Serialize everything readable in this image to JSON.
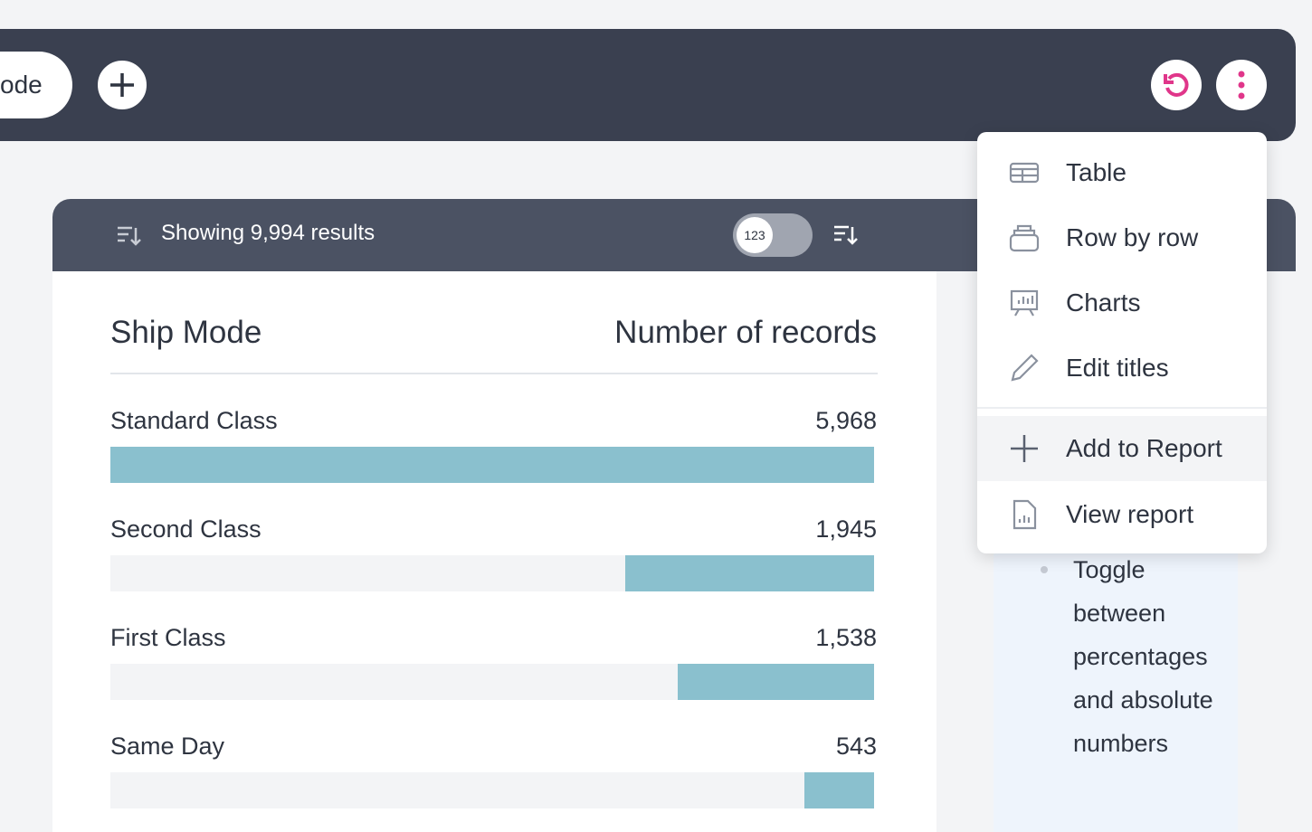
{
  "toolbar": {
    "pill": "ode"
  },
  "results": {
    "text": "Showing 9,994 results",
    "toggle": "123"
  },
  "table": {
    "headers": [
      "Ship Mode",
      "Number of records"
    ],
    "rows": [
      {
        "name": "Standard Class",
        "value": 5968,
        "value_label": "5,968"
      },
      {
        "name": "Second Class",
        "value": 1945,
        "value_label": "1,945"
      },
      {
        "name": "First Class",
        "value": 1538,
        "value_label": "1,538"
      },
      {
        "name": "Same Day",
        "value": 543,
        "value_label": "543"
      }
    ]
  },
  "menu": {
    "items": [
      "Table",
      "Row by row",
      "Charts",
      "Edit titles",
      "Add to Report",
      "View report"
    ]
  },
  "side_note": "Toggle between percentages and absolute numbers"
}
